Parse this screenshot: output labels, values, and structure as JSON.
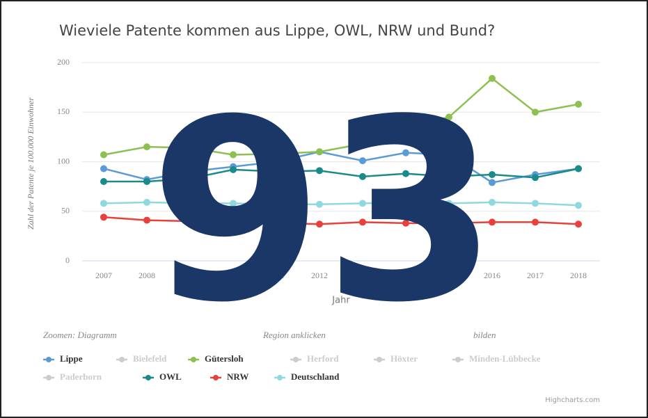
{
  "chart_data": {
    "type": "line",
    "title": "Wieviele Patente kommen aus Lippe, OWL, NRW und Bund?",
    "y_axis_label": "Zahl der Patente je 100.000 Einwohner",
    "x_axis_label": "Jahr",
    "note_fragments": [
      "Zoomen: Diagramm",
      "Region anklicken",
      "bilden"
    ],
    "credits": "Highcharts.com",
    "overlay": "93",
    "categories": [
      "2007",
      "2008",
      "2009",
      "2010",
      "2011",
      "2012",
      "2013",
      "2014",
      "2015",
      "2016",
      "2017",
      "2018"
    ],
    "ylim": [
      0,
      200
    ],
    "yticks": [
      0,
      50,
      100,
      150,
      200
    ],
    "grid": true,
    "series": [
      {
        "name": "Lippe",
        "color": "#5b9bd5",
        "visible": true,
        "values": [
          93,
          82,
          90,
          95,
          100,
          110,
          101,
          109,
          107,
          79,
          87,
          93
        ]
      },
      {
        "name": "Bielefeld",
        "color": "#cccccc",
        "visible": false
      },
      {
        "name": "Gütersloh",
        "color": "#8cc152",
        "visible": true,
        "values": [
          107,
          115,
          114,
          107,
          108,
          110,
          118,
          135,
          145,
          184,
          150,
          158
        ]
      },
      {
        "name": "Herford",
        "color": "#cccccc",
        "visible": false
      },
      {
        "name": "Höxter",
        "color": "#cccccc",
        "visible": false
      },
      {
        "name": "Minden-Lübbecke",
        "color": "#cccccc",
        "visible": false
      },
      {
        "name": "Paderborn",
        "color": "#cccccc",
        "visible": false
      },
      {
        "name": "OWL",
        "color": "#1a8a8a",
        "visible": true,
        "values": [
          80,
          80,
          83,
          92,
          90,
          91,
          85,
          88,
          85,
          87,
          84,
          93
        ]
      },
      {
        "name": "NRW",
        "color": "#e8413c",
        "visible": true,
        "values": [
          44,
          41,
          40,
          40,
          38,
          37,
          39,
          38,
          38,
          39,
          39,
          37
        ]
      },
      {
        "name": "Deutschland",
        "color": "#8fd8df",
        "visible": true,
        "values": [
          58,
          59,
          58,
          58,
          57,
          57,
          58,
          59,
          58,
          59,
          58,
          56
        ]
      }
    ]
  }
}
